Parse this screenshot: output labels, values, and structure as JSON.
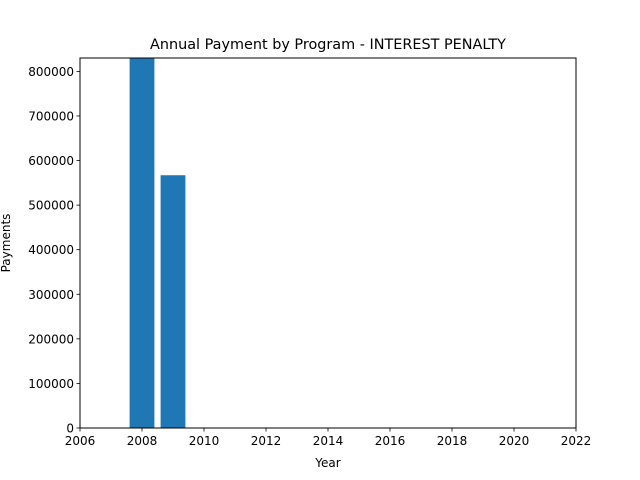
{
  "chart_data": {
    "type": "bar",
    "title": "Annual Payment by Program - INTEREST PENALTY",
    "xlabel": "Year",
    "ylabel": "Payments",
    "x": [
      2008,
      2009
    ],
    "values": [
      830000,
      567000
    ],
    "bar_width": 0.8,
    "xlim": [
      2006,
      2022
    ],
    "ylim": [
      0,
      830000
    ],
    "x_ticks": [
      "2006",
      "2008",
      "2010",
      "2012",
      "2014",
      "2016",
      "2018",
      "2020",
      "2022"
    ],
    "y_ticks": [
      "0",
      "100000",
      "200000",
      "300000",
      "400000",
      "500000",
      "600000",
      "700000",
      "800000"
    ],
    "bar_color": "#1f77b4",
    "grid": false,
    "legend": "none"
  }
}
